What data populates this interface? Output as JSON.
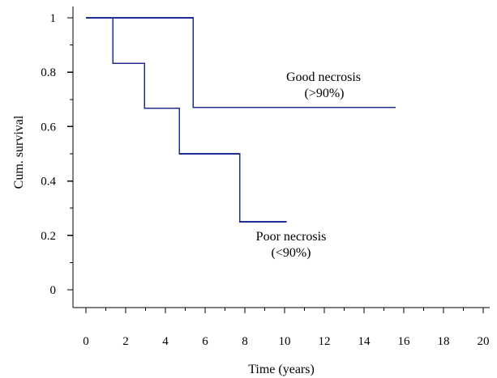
{
  "chart_data": {
    "type": "line",
    "title": "",
    "xlabel": "Time (years)",
    "ylabel": "Cum. survival",
    "xlim": [
      0,
      20
    ],
    "ylim": [
      0,
      1
    ],
    "x_ticks": [
      0,
      2,
      4,
      6,
      8,
      10,
      12,
      14,
      16,
      18,
      20
    ],
    "y_ticks": [
      0,
      0.2,
      0.4,
      0.6,
      0.8,
      1
    ],
    "x_tick_labels": [
      "0",
      "2",
      "4",
      "6",
      "8",
      "10",
      "12",
      "14",
      "16",
      "18",
      "20"
    ],
    "y_tick_labels": [
      "0",
      "0.2",
      "0.4",
      "0.6",
      "0.8",
      "1"
    ],
    "grid": false,
    "step_style": "post",
    "series": [
      {
        "label_lines": [
          "Good necrosis",
          "(>90%)"
        ],
        "color": "#1f2f8f",
        "x": [
          0,
          5.4,
          15.6
        ],
        "y": [
          1.0,
          0.67,
          0.67
        ]
      },
      {
        "label_lines": [
          "Poor necrosis",
          "(<90%)"
        ],
        "color": "#1f2f8f",
        "x": [
          0,
          1.35,
          2.95,
          4.7,
          7.75,
          10.1
        ],
        "y": [
          1.0,
          0.833,
          0.667,
          0.5,
          0.25,
          0.25
        ]
      }
    ]
  }
}
